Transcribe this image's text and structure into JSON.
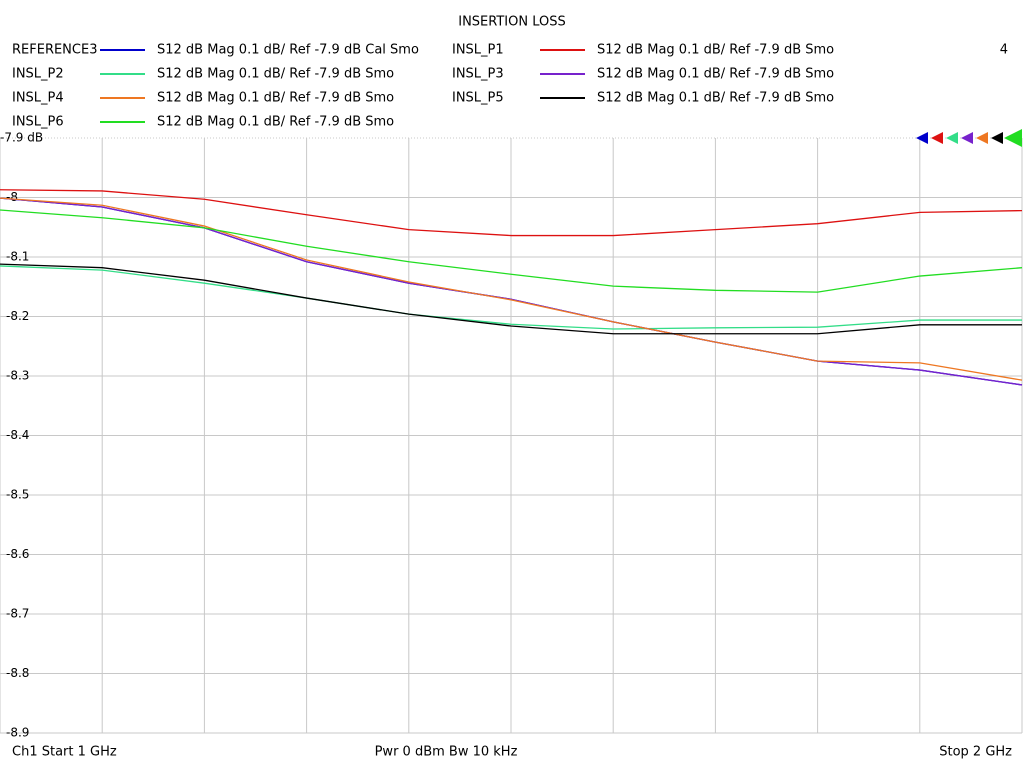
{
  "chart_data": {
    "type": "line",
    "title": "INSERTION LOSS",
    "annotation": "4",
    "x": [
      1.0,
      1.1,
      1.2,
      1.3,
      1.4,
      1.5,
      1.6,
      1.7,
      1.8,
      1.9,
      2.0
    ],
    "xlim": [
      1.0,
      2.0
    ],
    "ylim": [
      -8.9,
      -7.9
    ],
    "yticks": [
      {
        "value": -7.9,
        "label": "-7.9 dB"
      },
      -8,
      -8.1,
      -8.2,
      -8.3,
      -8.4,
      -8.5,
      -8.6,
      -8.7,
      -8.8,
      -8.9
    ],
    "grid": true,
    "series": [
      {
        "name": "REFERENCE3",
        "trace_info": "S12  dB Mag  0.1 dB/ Ref -7.9 dB  Cal Smo",
        "color": "#0000cc",
        "values": [
          -8.001,
          -8.016,
          -8.051,
          -8.108,
          -8.144,
          -8.171,
          -8.209,
          -8.243,
          -8.275,
          -8.29,
          -8.315
        ]
      },
      {
        "name": "INSL_P1",
        "trace_info": "S12  dB Mag  0.1 dB/ Ref -7.9 dB  Smo",
        "color": "#dd1111",
        "values": [
          -7.987,
          -7.989,
          -8.003,
          -8.029,
          -8.054,
          -8.064,
          -8.064,
          -8.054,
          -8.044,
          -8.025,
          -8.022
        ]
      },
      {
        "name": "INSL_P2",
        "trace_info": "S12  dB Mag  0.1 dB/ Ref -7.9 dB  Smo",
        "color": "#33dd88",
        "values": [
          -8.115,
          -8.122,
          -8.144,
          -8.169,
          -8.196,
          -8.213,
          -8.221,
          -8.219,
          -8.218,
          -8.206,
          -8.206
        ]
      },
      {
        "name": "INSL_P3",
        "trace_info": "S12  dB Mag  0.1 dB/ Ref -7.9 dB  Smo",
        "color": "#7722cc",
        "values": [
          -8.001,
          -8.016,
          -8.051,
          -8.108,
          -8.144,
          -8.171,
          -8.209,
          -8.243,
          -8.275,
          -8.29,
          -8.315
        ]
      },
      {
        "name": "INSL_P4",
        "trace_info": "S12  dB Mag  0.1 dB/ Ref -7.9 dB  Smo",
        "color": "#ee7722",
        "values": [
          -8.001,
          -8.013,
          -8.048,
          -8.105,
          -8.142,
          -8.172,
          -8.209,
          -8.243,
          -8.275,
          -8.278,
          -8.307
        ]
      },
      {
        "name": "INSL_P5",
        "trace_info": "S12  dB Mag  0.1 dB/ Ref -7.9 dB  Smo",
        "color": "#000000",
        "values": [
          -8.112,
          -8.118,
          -8.139,
          -8.169,
          -8.196,
          -8.216,
          -8.229,
          -8.229,
          -8.229,
          -8.214,
          -8.214
        ]
      },
      {
        "name": "INSL_P6",
        "trace_info": "S12  dB Mag  0.1 dB/ Ref -7.9 dB  Smo",
        "color": "#22dd22",
        "values": [
          -8.021,
          -8.034,
          -8.051,
          -8.082,
          -8.108,
          -8.129,
          -8.149,
          -8.156,
          -8.159,
          -8.132,
          -8.118
        ]
      }
    ],
    "footer": {
      "left": "Ch1  Start  1 GHz",
      "center": "Pwr  0 dBm  Bw  10 kHz",
      "right": "Stop  2 GHz"
    }
  }
}
